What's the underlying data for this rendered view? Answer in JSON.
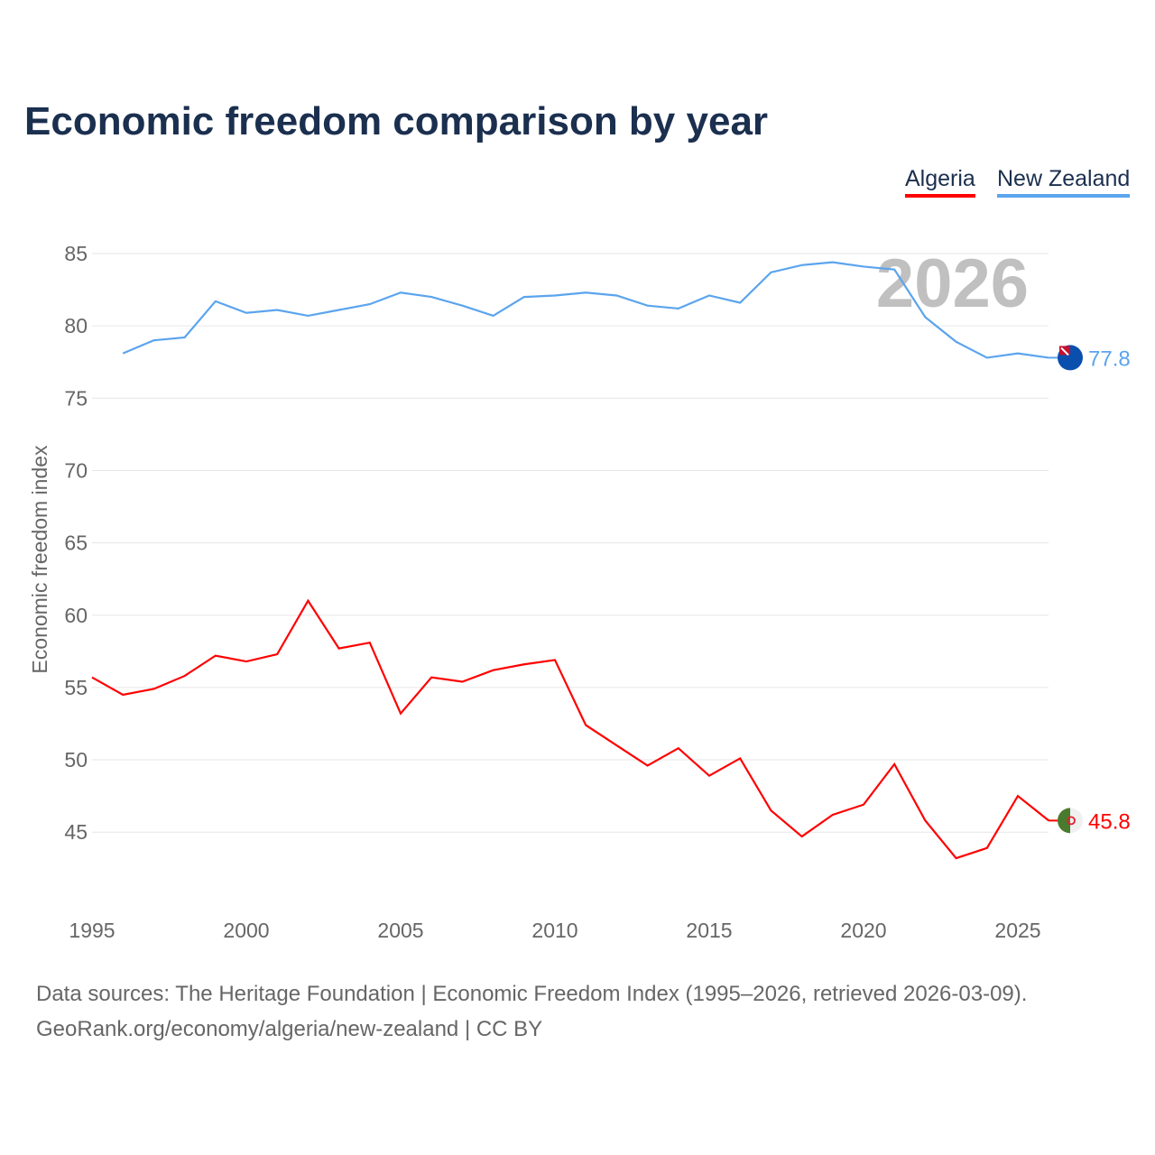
{
  "chart_data": {
    "type": "line",
    "title": "Economic freedom comparison by year",
    "ylabel": "Economic freedom index",
    "xlabel": "",
    "watermark_year": "2026",
    "ylim": [
      40,
      87
    ],
    "xlim": [
      1995,
      2026
    ],
    "yticks": [
      45,
      50,
      55,
      60,
      65,
      70,
      75,
      80,
      85
    ],
    "xticks": [
      1995,
      2000,
      2005,
      2010,
      2015,
      2020,
      2025
    ],
    "grid": true,
    "legend_placement": "top-right",
    "series": [
      {
        "name": "Algeria",
        "color": "#ff0000",
        "end_label": "45.8",
        "x": [
          1995,
          1996,
          1997,
          1998,
          1999,
          2000,
          2001,
          2002,
          2003,
          2004,
          2005,
          2006,
          2007,
          2008,
          2009,
          2010,
          2011,
          2012,
          2013,
          2014,
          2015,
          2016,
          2017,
          2018,
          2019,
          2020,
          2021,
          2022,
          2023,
          2024,
          2025,
          2026
        ],
        "values": [
          55.7,
          54.5,
          54.9,
          55.8,
          57.2,
          56.8,
          57.3,
          61.0,
          57.7,
          58.1,
          53.2,
          55.7,
          55.4,
          56.2,
          56.6,
          56.9,
          52.4,
          51.0,
          49.6,
          50.8,
          48.9,
          50.1,
          46.5,
          44.7,
          46.2,
          46.9,
          49.7,
          45.8,
          43.2,
          43.9,
          47.5,
          45.8
        ]
      },
      {
        "name": "New Zealand",
        "color": "#5ba4ee",
        "end_label": "77.8",
        "x": [
          1996,
          1997,
          1998,
          1999,
          2000,
          2001,
          2002,
          2003,
          2004,
          2005,
          2006,
          2007,
          2008,
          2009,
          2010,
          2011,
          2012,
          2013,
          2014,
          2015,
          2016,
          2017,
          2018,
          2019,
          2020,
          2021,
          2022,
          2023,
          2024,
          2025,
          2026
        ],
        "values": [
          78.1,
          79.0,
          79.2,
          81.7,
          80.9,
          81.1,
          80.7,
          81.1,
          81.5,
          82.3,
          82.0,
          81.4,
          80.7,
          82.0,
          82.1,
          82.3,
          82.1,
          81.4,
          81.2,
          82.1,
          81.6,
          83.7,
          84.2,
          84.4,
          84.1,
          83.9,
          80.6,
          78.9,
          77.8,
          78.1,
          77.8
        ]
      }
    ]
  },
  "footer": {
    "line1": "Data sources: The Heritage Foundation | Economic Freedom Index (1995–2026, retrieved 2026-03-09).",
    "line2": "GeoRank.org/economy/algeria/new-zealand | CC BY"
  }
}
